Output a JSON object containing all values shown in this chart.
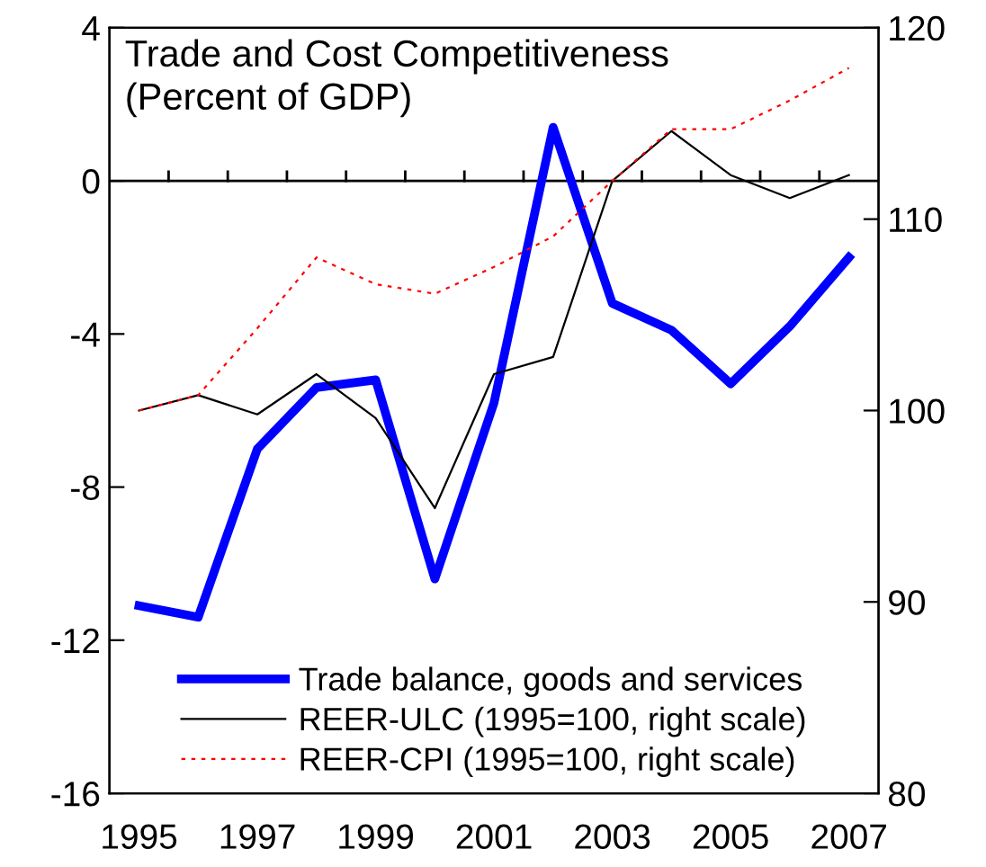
{
  "chart_data": {
    "type": "line",
    "title": "Trade and Cost Competitiveness\n(Percent of GDP)",
    "x": [
      1995,
      1996,
      1997,
      1998,
      1999,
      2000,
      2001,
      2002,
      2003,
      2004,
      2005,
      2006,
      2007
    ],
    "series": [
      {
        "name": "Trade balance, goods and services",
        "color": "#0000ff",
        "values": [
          -11.1,
          -11.4,
          -7.0,
          -5.4,
          -5.2,
          -10.4,
          -5.8,
          1.4,
          -3.2,
          -3.9,
          -5.3,
          -3.8,
          -2.0
        ]
      },
      {
        "name": "REER-ULC (1995=100, right scale)",
        "color": "#000000",
        "axis": "y2",
        "values": [
          100,
          100.8,
          99.8,
          101.9,
          99.6,
          94.9,
          101.9,
          102.8,
          112.0,
          114.6,
          112.3,
          111.1,
          112.3
        ]
      },
      {
        "name": "REER-CPI (1995=100, right scale)",
        "color": "#ff0000",
        "axis": "y2",
        "line_style": "dotted",
        "values": [
          100,
          100.8,
          104.3,
          108.0,
          106.6,
          106.1,
          107.5,
          109.1,
          112.0,
          114.7,
          114.7,
          116.2,
          117.9
        ]
      }
    ],
    "xlim": [
      1994.5,
      2007.5
    ],
    "xticks": [
      1995,
      {
        "value": 1995.5,
        "label": null
      },
      {
        "value": 1996.5,
        "label": null
      },
      1997,
      {
        "value": 1997.5,
        "label": null
      },
      {
        "value": 1998.5,
        "label": null
      },
      1999,
      {
        "value": 1999.5,
        "label": null
      },
      {
        "value": 2000.5,
        "label": null
      },
      2001,
      {
        "value": 2001.5,
        "label": null
      },
      {
        "value": 2002.5,
        "label": null
      },
      2003,
      {
        "value": 2003.5,
        "label": null
      },
      {
        "value": 2004.5,
        "label": null
      },
      2005,
      {
        "value": 2005.5,
        "label": null
      },
      {
        "value": 2006.5,
        "label": null
      },
      2007
    ],
    "ylim": [
      -16,
      4
    ],
    "yticks": [
      -16,
      -12,
      -8,
      -4,
      0,
      4
    ],
    "y2lim": [
      80,
      120
    ],
    "y2ticks": [
      80,
      90,
      100,
      110,
      120
    ],
    "ref_lines": [
      {
        "axis": "y",
        "value": 0,
        "color": "#000000"
      }
    ],
    "legend": "bottom",
    "grid": false
  }
}
